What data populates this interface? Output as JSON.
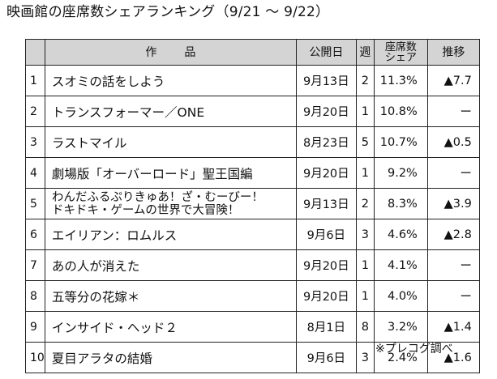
{
  "title": "映画館の座席数シェアランキング（9/21 ～ 9/22）",
  "headers": {
    "title": "作品",
    "date": "公開日",
    "week": "週",
    "share_line1": "座席数",
    "share_line2": "シェア",
    "trend": "推移"
  },
  "rows": [
    {
      "rank": "1",
      "title": "スオミの話をしよう",
      "date": "9月13日",
      "week": "2",
      "share": "11.3%",
      "trend": "▲7.7"
    },
    {
      "rank": "2",
      "title": "トランスフォーマー／ONE",
      "date": "9月20日",
      "week": "1",
      "share": "10.8%",
      "trend": "ー"
    },
    {
      "rank": "3",
      "title": "ラストマイル",
      "date": "8月23日",
      "week": "5",
      "share": "10.7%",
      "trend": "▲0.5"
    },
    {
      "rank": "4",
      "title": "劇場版「オーバーロード」聖王国編",
      "date": "9月20日",
      "week": "1",
      "share": "9.2%",
      "trend": "ー"
    },
    {
      "rank": "5",
      "title_line1": "わんだふるぷりきゅあ！ざ・むーびー！",
      "title_line2": "ドキドキ・ゲームの世界で大冒険！",
      "date": "9月13日",
      "week": "2",
      "share": "8.3%",
      "trend": "▲3.9"
    },
    {
      "rank": "6",
      "title": "エイリアン：ロムルス",
      "date": "9月6日",
      "week": "3",
      "share": "4.6%",
      "trend": "▲2.8"
    },
    {
      "rank": "7",
      "title": "あの人が消えた",
      "date": "9月20日",
      "week": "1",
      "share": "4.1%",
      "trend": "ー"
    },
    {
      "rank": "8",
      "title": "五等分の花嫁＊",
      "date": "9月20日",
      "week": "1",
      "share": "4.0%",
      "trend": "ー"
    },
    {
      "rank": "9",
      "title": "インサイド・ヘッド２",
      "date": "8月1日",
      "week": "8",
      "share": "3.2%",
      "trend": "▲1.4"
    },
    {
      "rank": "10",
      "title": "夏目アラタの結婚",
      "date": "9月6日",
      "week": "3",
      "share": "2.4%",
      "trend": "▲1.6"
    }
  ],
  "note": "※プレコグ調べ"
}
